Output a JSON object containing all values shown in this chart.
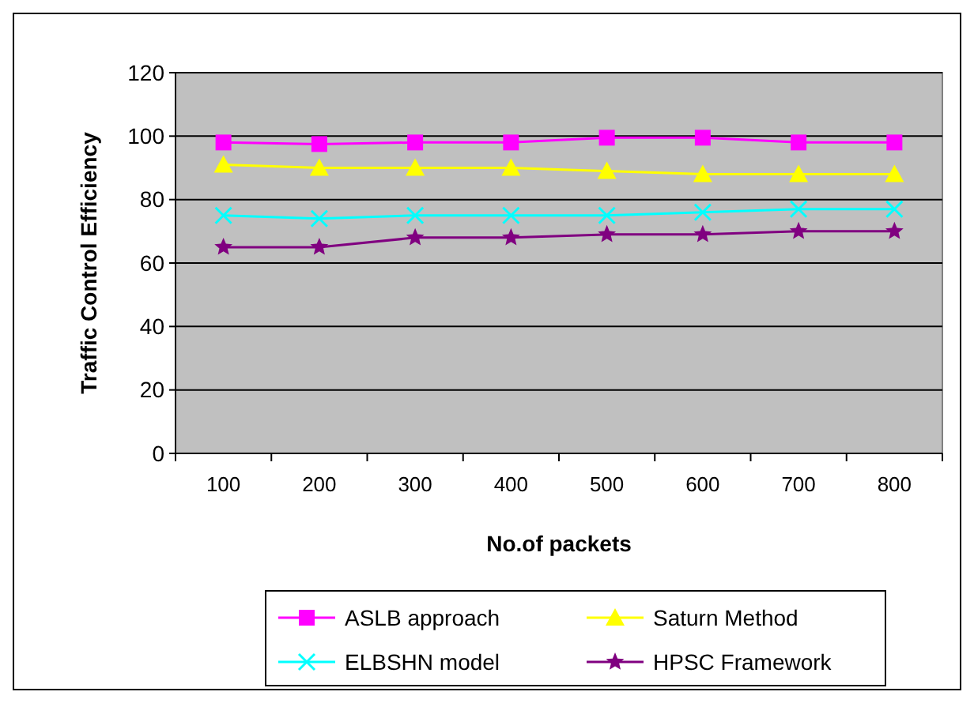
{
  "chart_data": {
    "type": "line",
    "xlabel": "No.of packets",
    "ylabel": "Traffic Control Efficiency",
    "categories": [
      "100",
      "200",
      "300",
      "400",
      "500",
      "600",
      "700",
      "800"
    ],
    "ylim": [
      0,
      120
    ],
    "yticks": [
      0,
      20,
      40,
      60,
      80,
      100,
      120
    ],
    "grid": "y",
    "legend": "bottom",
    "line_style": "solid",
    "series": [
      {
        "name": "ASLB approach",
        "color": "#ff00ff",
        "marker": "square",
        "values": [
          98,
          97.5,
          98,
          98,
          99.5,
          99.5,
          98,
          98
        ]
      },
      {
        "name": "Saturn Method",
        "color": "#ffff00",
        "marker": "triangle",
        "values": [
          91,
          90,
          90,
          90,
          89,
          88,
          88,
          88
        ]
      },
      {
        "name": "ELBSHN model",
        "color": "#00ffff",
        "marker": "cross",
        "values": [
          75,
          74,
          75,
          75,
          75,
          76,
          77,
          77
        ]
      },
      {
        "name": "HPSC Framework",
        "color": "#800080",
        "marker": "star",
        "values": [
          65,
          65,
          68,
          68,
          69,
          69,
          70,
          70
        ]
      }
    ]
  }
}
